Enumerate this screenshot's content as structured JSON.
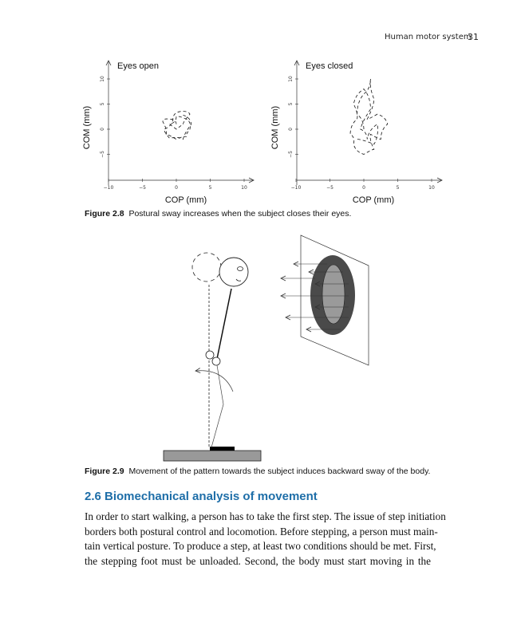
{
  "header": {
    "running_title": "Human motor system",
    "page_number": "31"
  },
  "figure_2_8": {
    "label": "Figure 2.8",
    "caption": "Postural sway increases when the subject closes their eyes."
  },
  "figure_2_9": {
    "label": "Figure 2.9",
    "caption": "Movement of the pattern towards the subject induces backward sway of the body.",
    "colors": {
      "ring": "#4a4a4a",
      "inner": "#9a9a9a",
      "ground": "#999999",
      "foot": "#000000"
    }
  },
  "section": {
    "heading": "2.6  Biomechanical analysis of movement"
  },
  "body_lines": [
    "In order to start walking, a person has to take the first step. The issue of step initiation",
    "borders both postural control and locomotion. Before stepping, a person must main-",
    "tain vertical posture. To produce a step, at least two conditions should be met. First,",
    "the stepping foot must be unloaded. Second, the body must start moving in the"
  ],
  "chart_data": [
    {
      "type": "line",
      "title": "Eyes open",
      "xlabel": "COP (mm)",
      "ylabel": "COM (mm)",
      "xlim": [
        -10,
        10
      ],
      "ylim": [
        -10,
        12
      ],
      "xticks": [
        "-10",
        "-5",
        "0",
        "5",
        "10"
      ],
      "yticks": [
        "-5",
        "0",
        "5",
        "10"
      ],
      "line_style": "dashed",
      "grid": false,
      "points": [
        [
          0,
          1
        ],
        [
          -1,
          2
        ],
        [
          -2,
          1.5
        ],
        [
          -1.5,
          -1
        ],
        [
          0,
          -2
        ],
        [
          1.5,
          -1.5
        ],
        [
          2,
          0
        ],
        [
          1.5,
          2
        ],
        [
          0,
          2.5
        ],
        [
          -1,
          1
        ],
        [
          0,
          0
        ],
        [
          1,
          1
        ],
        [
          2,
          3
        ],
        [
          0.5,
          3.5
        ],
        [
          -0.5,
          2
        ],
        [
          -1.8,
          0
        ],
        [
          -1,
          -1.8
        ],
        [
          1,
          -2
        ],
        [
          2.2,
          1
        ],
        [
          1,
          2.8
        ]
      ]
    },
    {
      "type": "line",
      "title": "Eyes closed",
      "xlabel": "COP (mm)",
      "ylabel": "COM (mm)",
      "xlim": [
        -10,
        10
      ],
      "ylim": [
        -10,
        12
      ],
      "xticks": [
        "-10",
        "-5",
        "0",
        "5",
        "10"
      ],
      "yticks": [
        "-5",
        "0",
        "5",
        "10"
      ],
      "line_style": "dashed",
      "grid": false,
      "points": [
        [
          0,
          0
        ],
        [
          -1,
          3
        ],
        [
          0,
          7
        ],
        [
          1,
          10
        ],
        [
          1.5,
          6
        ],
        [
          0.5,
          2
        ],
        [
          2,
          3
        ],
        [
          3.5,
          1
        ],
        [
          2.5,
          -2
        ],
        [
          1,
          -1
        ],
        [
          1.5,
          -4
        ],
        [
          0,
          -5
        ],
        [
          -1.5,
          -3
        ],
        [
          -2,
          -1
        ],
        [
          -1,
          2
        ],
        [
          -1.5,
          5
        ],
        [
          0,
          8
        ],
        [
          1,
          4
        ],
        [
          -0.5,
          0
        ],
        [
          0.5,
          -2
        ],
        [
          2,
          1
        ],
        [
          1.5,
          -3
        ],
        [
          -1,
          -2
        ]
      ]
    }
  ]
}
